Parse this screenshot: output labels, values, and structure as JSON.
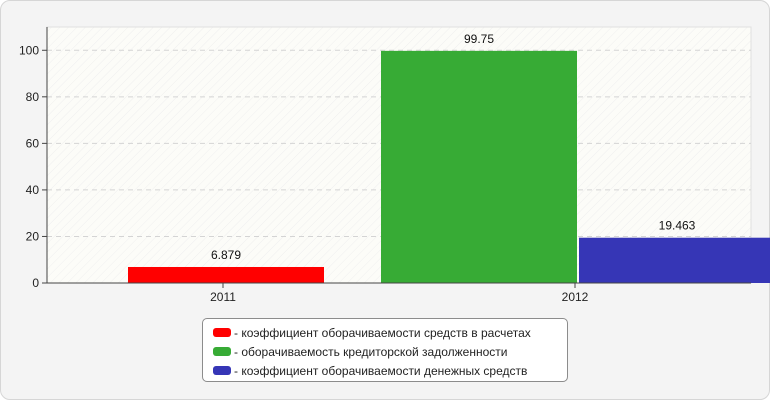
{
  "chart_data": {
    "type": "bar",
    "categories": [
      "2011",
      "2012"
    ],
    "ylim": [
      0,
      110
    ],
    "yticks": [
      0,
      20,
      40,
      60,
      80,
      100
    ],
    "grid": true,
    "legend_position": "bottom-center",
    "series": [
      {
        "name": "коэффициент оборачиваемости средств в расчетах",
        "color": "#ff0000",
        "values": [
          6.879,
          null
        ],
        "label": "6.879"
      },
      {
        "name": "оборачиваемость кредиторской задолженности",
        "color": "#37ab35",
        "values": [
          null,
          99.75
        ],
        "label": "99.75"
      },
      {
        "name": "коэффициент оборачиваемости денежных средств",
        "color": "#3636b6",
        "values": [
          null,
          19.463
        ],
        "label": "19.463"
      }
    ]
  },
  "legend": {
    "items": [
      {
        "text": "- коэффициент оборачиваемости средств в расчетах",
        "color": "#ff0000"
      },
      {
        "text": "- оборачиваемость кредиторской задолженности",
        "color": "#37ab35"
      },
      {
        "text": "- коэффициент оборачиваемости денежных средств",
        "color": "#3636b6"
      }
    ]
  }
}
